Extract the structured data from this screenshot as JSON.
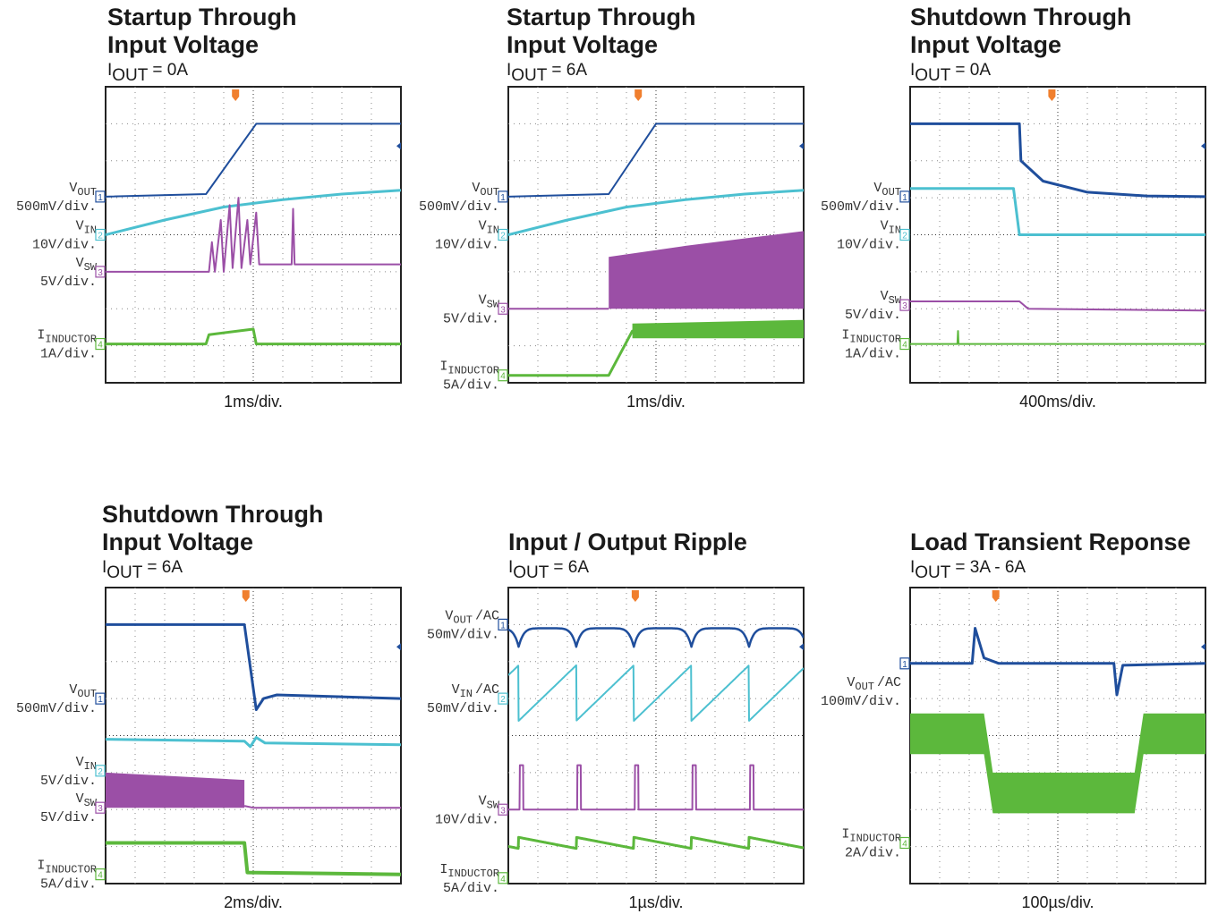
{
  "panels": [
    {
      "title": [
        "Startup Through",
        "Input Voltage"
      ],
      "subtitle": {
        "symbol": "I",
        "sub": "OUT",
        "value": "= 0A"
      },
      "timebase": "1ms/div.",
      "channels": [
        {
          "number": "1",
          "symbol": "V",
          "sub": "OUT",
          "scale": "500mV/div."
        },
        {
          "number": "2",
          "symbol": "V",
          "sub": "IN",
          "scale": "10V/div."
        },
        {
          "number": "3",
          "symbol": "V",
          "sub": "SW",
          "scale": "5V/div."
        },
        {
          "number": "4",
          "symbol": "I",
          "sub": "INDUCTOR",
          "scale": "1A/div."
        }
      ]
    },
    {
      "title": [
        "Startup Through",
        "Input Voltage"
      ],
      "subtitle": {
        "symbol": "I",
        "sub": "OUT",
        "value": "= 6A"
      },
      "timebase": "1ms/div.",
      "channels": [
        {
          "number": "1",
          "symbol": "V",
          "sub": "OUT",
          "scale": "500mV/div."
        },
        {
          "number": "2",
          "symbol": "V",
          "sub": "IN",
          "scale": "10V/div."
        },
        {
          "number": "3",
          "symbol": "V",
          "sub": "SW",
          "scale": "5V/div."
        },
        {
          "number": "4",
          "symbol": "I",
          "sub": "INDUCTOR",
          "scale": "5A/div."
        }
      ]
    },
    {
      "title": [
        "Shutdown Through",
        "Input Voltage"
      ],
      "subtitle": {
        "symbol": "I",
        "sub": "OUT",
        "value": "= 0A"
      },
      "timebase": "400ms/div.",
      "channels": [
        {
          "number": "1",
          "symbol": "V",
          "sub": "OUT",
          "scale": "500mV/div."
        },
        {
          "number": "2",
          "symbol": "V",
          "sub": "IN",
          "scale": "10V/div."
        },
        {
          "number": "3",
          "symbol": "V",
          "sub": "SW",
          "scale": "5V/div."
        },
        {
          "number": "4",
          "symbol": "I",
          "sub": "INDUCTOR",
          "scale": "1A/div."
        }
      ]
    },
    {
      "title": [
        "Shutdown Through",
        "Input Voltage"
      ],
      "subtitle": {
        "symbol": "I",
        "sub": "OUT",
        "value": "= 6A"
      },
      "timebase": "2ms/div.",
      "channels": [
        {
          "number": "1",
          "symbol": "V",
          "sub": "OUT",
          "scale": "500mV/div."
        },
        {
          "number": "2",
          "symbol": "V",
          "sub": "IN",
          "scale": "5V/div."
        },
        {
          "number": "3",
          "symbol": "V",
          "sub": "SW",
          "scale": "5V/div."
        },
        {
          "number": "4",
          "symbol": "I",
          "sub": "INDUCTOR",
          "scale": "5A/div."
        }
      ]
    },
    {
      "title": [
        "Input / Output Ripple"
      ],
      "subtitle": {
        "symbol": "I",
        "sub": "OUT",
        "value": "= 6A"
      },
      "timebase": "1µs/div.",
      "channels": [
        {
          "number": "1",
          "symbol": "V",
          "sub": "OUT",
          "suffix": "/AC",
          "scale": "50mV/div."
        },
        {
          "number": "2",
          "symbol": "V",
          "sub": "IN",
          "suffix": "/AC",
          "scale": "50mV/div."
        },
        {
          "number": "3",
          "symbol": "V",
          "sub": "SW",
          "scale": "10V/div."
        },
        {
          "number": "4",
          "symbol": "I",
          "sub": "INDUCTOR",
          "scale": "5A/div."
        }
      ]
    },
    {
      "title": [
        "Load Transient Reponse"
      ],
      "subtitle": {
        "symbol": "I",
        "sub": "OUT",
        "value": "= 3A - 6A"
      },
      "timebase": "100µs/div.",
      "channels": [
        {
          "number": "1",
          "symbol": "V",
          "sub": "OUT",
          "suffix": "/AC",
          "scale": "100mV/div."
        },
        {
          "number": "4",
          "symbol": "I",
          "sub": "INDUCTOR",
          "scale": "2A/div."
        }
      ]
    }
  ]
}
